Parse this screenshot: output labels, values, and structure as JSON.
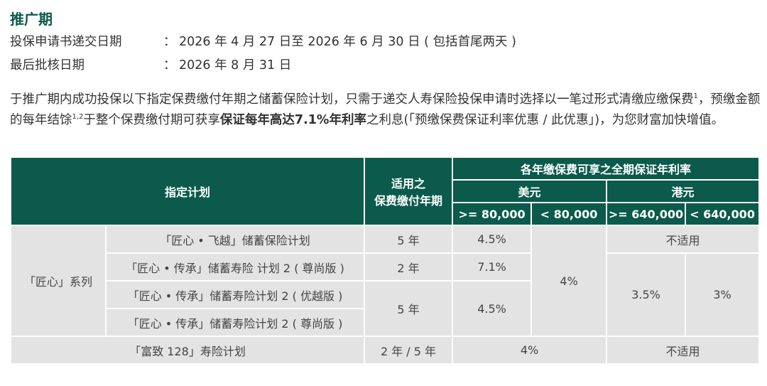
{
  "heading": "推广期",
  "info": [
    {
      "label": "投保申请书递交日期",
      "sep": "：",
      "value": "2026 年 4 月 27 日至 2026 年 6 月 30 日 ( 包括首尾两天 )"
    },
    {
      "label": "最后批核日期",
      "sep": "：",
      "value": "2026 年 8 月 31 日"
    }
  ],
  "paragraph": {
    "part1": "于推广期内成功投保以下指定保费缴付年期之储蓄保险计划，只需于递交人寿保险投保申请时选择以一笔过形式清缴应缴保费",
    "sup1": "1",
    "part2": "，预缴金额的每年结馀",
    "sup2": "1,2",
    "part3": "于整个保费缴付期可获享",
    "bold": "保证每年高达7.1%年利率",
    "part4": "之利息(「预缴保费保证利率优惠 / 此优惠」)，为您财富加快增值。"
  },
  "table": {
    "header": {
      "plan": "指定计划",
      "term_line1": "适用之",
      "term_line2": "保费缴付年期",
      "rate_title": "各年缴保费可享之全期保证年利率",
      "usd": "美元",
      "hkd": "港元",
      "usd_high": ">= 80,000",
      "usd_low": "< 80,000",
      "hkd_high": ">= 640,000",
      "hkd_low": "< 640,000"
    },
    "series_name": "「匠心」系列",
    "rows": [
      {
        "plan": "「匠心 • 飞越」储蓄保险计划",
        "term": "5 年",
        "usd_high": "4.5%"
      },
      {
        "plan": "「匠心 • 传承」储蓄寿险 计划 2 ( 尊尚版 )",
        "term": "2 年",
        "usd_high": "7.1%"
      },
      {
        "plan": "「匠心 • 传承」储蓄寿险计划 2 ( 优越版 )"
      },
      {
        "plan": "「匠心 • 传承」储蓄寿险计划 2 ( 尊尚版 )"
      }
    ],
    "shared": {
      "term_5yr": "5 年",
      "usd_high_45": "4.5%",
      "usd_low_rate": "4%",
      "not_applicable": "不适用",
      "hkd_high_rate": "3.5%",
      "hkd_low_rate": "3%"
    },
    "last_row": {
      "plan": "「富致 128」寿险计划",
      "term": "2 年 / 5 年",
      "usd_rate": "4%",
      "hkd": "不适用"
    }
  }
}
